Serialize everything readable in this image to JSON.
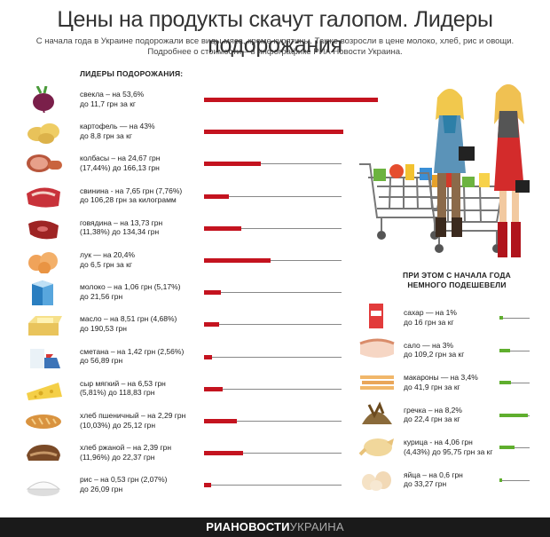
{
  "header": {
    "title": "Цены на продукты скачут галопом. Лидеры подорожания",
    "subtitle_line1": "С начала года в Украине подорожали все виды мяса, кроме курятины. Также возросли в цене молоко, хлеб, рис и овощи.",
    "subtitle_line2": "Подробнее о стоимости – в инфографике РИА Новости Украина."
  },
  "chart_data": [
    {
      "type": "bar",
      "title": "ЛИДЕРЫ ПОДОРОЖАНИЯ:",
      "unit": "%",
      "colors": {
        "bar": "#c4131f",
        "track": "#888888"
      },
      "items": [
        {
          "icon": "beet-icon",
          "value": 53.6,
          "line1": "свекла – на 53,6%",
          "line2": "до 11,7 грн за кг"
        },
        {
          "icon": "potato-icon",
          "value": 43,
          "line1": "картофель — на 43%",
          "line2": "до 8,8 грн за кг"
        },
        {
          "icon": "sausage-icon",
          "value": 17.44,
          "line1": "колбасы – на 24,67 грн",
          "line2": "(17,44%) до 166,13 грн"
        },
        {
          "icon": "pork-icon",
          "value": 7.76,
          "line1": "свинина - на 7,65 грн (7,76%)",
          "line2": "до 106,28 грн за килограмм"
        },
        {
          "icon": "beef-icon",
          "value": 11.38,
          "line1": "говядина – на 13,73 грн",
          "line2": "(11,38%) до 134,34 грн"
        },
        {
          "icon": "onion-icon",
          "value": 20.4,
          "line1": "лук — на 20,4%",
          "line2": "до 6,5 грн за кг"
        },
        {
          "icon": "milk-icon",
          "value": 5.17,
          "line1": "молоко – на 1,06 грн (5,17%)",
          "line2": "до 21,56 грн"
        },
        {
          "icon": "butter-icon",
          "value": 4.68,
          "line1": "масло – на 8,51 грн (4,68%)",
          "line2": "до 190,53 грн"
        },
        {
          "icon": "sour-cream-icon",
          "value": 2.56,
          "line1": "сметана – на 1,42 грн (2,56%)",
          "line2": "до 56,89 грн"
        },
        {
          "icon": "cheese-icon",
          "value": 5.81,
          "line1": "сыр мягкий – на 6,53 грн",
          "line2": "(5,81%) до 118,83 грн"
        },
        {
          "icon": "wheat-bread-icon",
          "value": 10.03,
          "line1": "хлеб пшеничный – на 2,29 грн",
          "line2": "(10,03%) до 25,12 грн"
        },
        {
          "icon": "rye-bread-icon",
          "value": 11.96,
          "line1": "хлеб ржаной – на 2,39 грн",
          "line2": "(11,96%) до 22,37 грн"
        },
        {
          "icon": "rice-icon",
          "value": 2.07,
          "line1": "рис – на 0,53 грн (2,07%)",
          "line2": "до 26,09 грн"
        }
      ]
    },
    {
      "type": "bar",
      "title_line1": "ПРИ ЭТОМ С НАЧАЛА ГОДА",
      "title_line2": "НЕМНОГО ПОДЕШЕВЕЛИ",
      "unit": "%",
      "colors": {
        "bar": "#5fae2e",
        "track": "#888888"
      },
      "items": [
        {
          "icon": "sugar-icon",
          "value": 1,
          "line1": "сахар — на 1%",
          "line2": "до 16 грн за кг"
        },
        {
          "icon": "salo-icon",
          "value": 3,
          "line1": "сало — на 3%",
          "line2": "до 109,2 грн за кг"
        },
        {
          "icon": "pasta-icon",
          "value": 3.4,
          "line1": "макароны — на 3,4%",
          "line2": "до 41,9 грн за кг"
        },
        {
          "icon": "buckwheat-icon",
          "value": 8.2,
          "line1": "гречка – на 8,2%",
          "line2": "до 22,4 грн за кг"
        },
        {
          "icon": "chicken-icon",
          "value": 4.43,
          "line1": "курица - на 4,06 грн",
          "line2": "(4,43%) до 95,75 грн за кг"
        },
        {
          "icon": "eggs-icon",
          "value": 0.6,
          "line1": "яйца – на 0,6 грн",
          "line2": "до 33,27 грн"
        }
      ]
    }
  ],
  "footer": {
    "brand_bold": "РИАНОВОСТИ",
    "brand_light": "УКРАИНА"
  }
}
